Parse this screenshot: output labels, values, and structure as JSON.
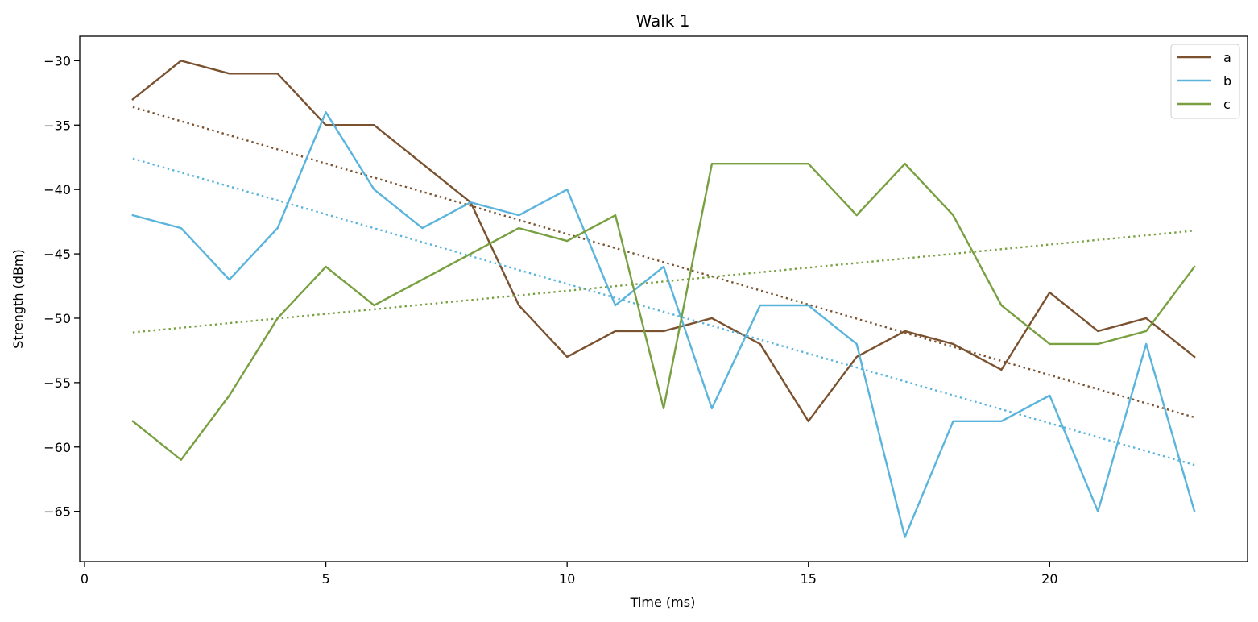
{
  "chart_data": {
    "type": "line",
    "title": "Walk 1",
    "xlabel": "Time (ms)",
    "ylabel": "Strength (dBm)",
    "xlim": [
      -0.1,
      24.1
    ],
    "ylim": [
      -68.9,
      -28.1
    ],
    "x_ticks": [
      0,
      5,
      10,
      15,
      20
    ],
    "y_ticks": [
      -30,
      -35,
      -40,
      -45,
      -50,
      -55,
      -60,
      -65
    ],
    "x_tick_labels": [
      "0",
      "5",
      "10",
      "15",
      "20"
    ],
    "y_tick_labels": [
      "−30",
      "−35",
      "−40",
      "−45",
      "−50",
      "−55",
      "−60",
      "−65"
    ],
    "grid": false,
    "legend_position": "top-right",
    "x": [
      1,
      2,
      3,
      4,
      5,
      6,
      7,
      8,
      9,
      10,
      11,
      12,
      13,
      14,
      15,
      16,
      17,
      18,
      19,
      20,
      21,
      22,
      23
    ],
    "series": [
      {
        "name": "a",
        "color": "#7a5230",
        "values": [
          -33,
          -30,
          -31,
          -31,
          -35,
          -35,
          -38,
          -41,
          -49,
          -53,
          -51,
          -51,
          -50,
          -52,
          -58,
          -53,
          -51,
          -52,
          -54,
          -48,
          -51,
          -50,
          -53
        ],
        "trend": [
          -33.6,
          -57.7
        ]
      },
      {
        "name": "b",
        "color": "#5ab4dc",
        "values": [
          -42,
          -43,
          -47,
          -43,
          -34,
          -40,
          -43,
          -41,
          -42,
          -40,
          -49,
          -46,
          -57,
          -49,
          -49,
          -52,
          -67,
          -58,
          -58,
          -56,
          -65,
          -52,
          -65
        ],
        "trend": [
          -37.6,
          -61.4
        ]
      },
      {
        "name": "c",
        "color": "#78a040",
        "values": [
          -58,
          -61,
          -56,
          -50,
          -46,
          -49,
          -47,
          -45,
          -43,
          -44,
          -42,
          -57,
          -38,
          -38,
          -38,
          -42,
          -38,
          -42,
          -49,
          -52,
          -52,
          -51,
          -46
        ],
        "trend": [
          -51.1,
          -43.2
        ]
      }
    ]
  }
}
